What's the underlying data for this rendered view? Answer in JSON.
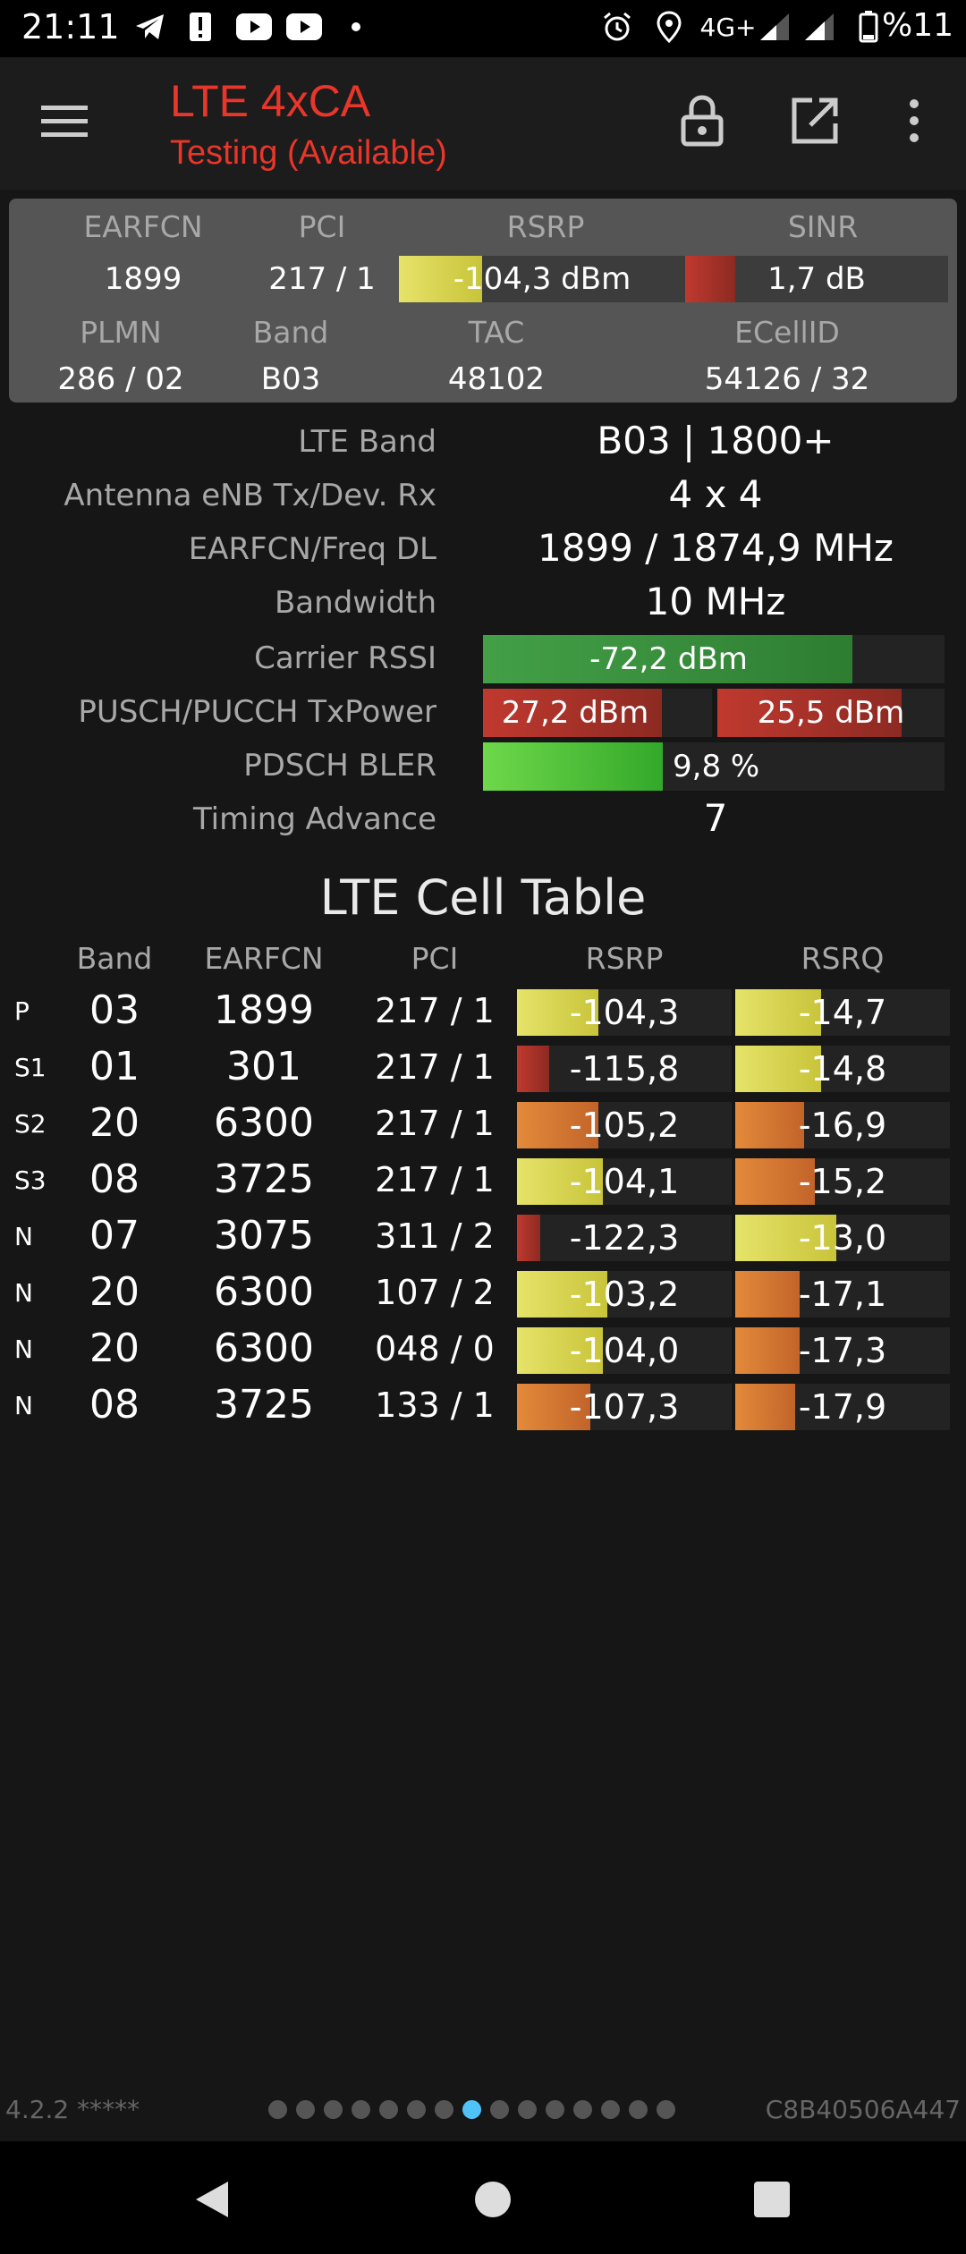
{
  "status": {
    "time": "21:11",
    "network": "4G+",
    "battery": "%11"
  },
  "toolbar": {
    "title": "LTE 4xCA",
    "subtitle": "Testing (Available)"
  },
  "summary": {
    "labels": {
      "earfcn": "EARFCN",
      "pci": "PCI",
      "rsrp": "RSRP",
      "sinr": "SINR",
      "plmn": "PLMN",
      "band": "Band",
      "tac": "TAC",
      "ecellid": "ECellID"
    },
    "earfcn": "1899",
    "pci": "217 / 1",
    "rsrp": "-104,3 dBm",
    "rsrp_level": 0.29,
    "sinr": "1,7 dB",
    "sinr_level": 0.19,
    "plmn": "286 / 02",
    "band": "B03",
    "tac": "48102",
    "ecellid": "54126 / 32"
  },
  "details": {
    "lte_band": {
      "label": "LTE Band",
      "value": "B03 | 1800+"
    },
    "antenna": {
      "label": "Antenna eNB Tx/Dev. Rx",
      "value": "4 x 4"
    },
    "earfcn_freq": {
      "label": "EARFCN/Freq DL",
      "value": "1899 / 1874,9 MHz"
    },
    "bandwidth": {
      "label": "Bandwidth",
      "value": "10 MHz"
    },
    "carrier_rssi": {
      "label": "Carrier RSSI",
      "value": "-72,2 dBm",
      "level": 0.8
    },
    "txpower": {
      "label": "PUSCH/PUCCH TxPower",
      "pusch": "27,2 dBm",
      "pusch_level": 0.78,
      "pucch": "25,5 dBm",
      "pucch_level": 0.81
    },
    "bler": {
      "label": "PDSCH BLER",
      "value": "9,8 %",
      "level": 0.39
    },
    "timing_advance": {
      "label": "Timing Advance",
      "value": "7"
    }
  },
  "cell_table": {
    "title": "LTE Cell Table",
    "headers": {
      "band": "Band",
      "earfcn": "EARFCN",
      "pci": "PCI",
      "rsrp": "RSRP",
      "rsrq": "RSRQ"
    },
    "rows": [
      {
        "tag": "P",
        "band": "03",
        "earfcn": "1899",
        "pci": "217 / 1",
        "rsrp": "-104,3",
        "rsrp_level": 0.38,
        "rsrp_color": "yellow",
        "rsrq": "-14,7",
        "rsrq_level": 0.4,
        "rsrq_color": "yellow"
      },
      {
        "tag": "S1",
        "band": "01",
        "earfcn": "301",
        "pci": "217 / 1",
        "rsrp": "-115,8",
        "rsrp_level": 0.15,
        "rsrp_color": "red",
        "rsrq": "-14,8",
        "rsrq_level": 0.4,
        "rsrq_color": "yellow"
      },
      {
        "tag": "S2",
        "band": "20",
        "earfcn": "6300",
        "pci": "217 / 1",
        "rsrp": "-105,2",
        "rsrp_level": 0.38,
        "rsrp_color": "orange",
        "rsrq": "-16,9",
        "rsrq_level": 0.32,
        "rsrq_color": "orange"
      },
      {
        "tag": "S3",
        "band": "08",
        "earfcn": "3725",
        "pci": "217 / 1",
        "rsrp": "-104,1",
        "rsrp_level": 0.4,
        "rsrp_color": "yellow",
        "rsrq": "-15,2",
        "rsrq_level": 0.37,
        "rsrq_color": "orange"
      },
      {
        "tag": "N",
        "band": "07",
        "earfcn": "3075",
        "pci": "311 / 2",
        "rsrp": "-122,3",
        "rsrp_level": 0.11,
        "rsrp_color": "red",
        "rsrq": "-13,0",
        "rsrq_level": 0.47,
        "rsrq_color": "yellow"
      },
      {
        "tag": "N",
        "band": "20",
        "earfcn": "6300",
        "pci": "107 / 2",
        "rsrp": "-103,2",
        "rsrp_level": 0.42,
        "rsrp_color": "yellow",
        "rsrq": "-17,1",
        "rsrq_level": 0.3,
        "rsrq_color": "orange"
      },
      {
        "tag": "N",
        "band": "20",
        "earfcn": "6300",
        "pci": "048 / 0",
        "rsrp": "-104,0",
        "rsrp_level": 0.4,
        "rsrp_color": "yellow",
        "rsrq": "-17,3",
        "rsrq_level": 0.3,
        "rsrq_color": "orange"
      },
      {
        "tag": "N",
        "band": "08",
        "earfcn": "3725",
        "pci": "133 / 1",
        "rsrp": "-107,3",
        "rsrp_level": 0.34,
        "rsrp_color": "orange",
        "rsrq": "-17,9",
        "rsrq_level": 0.28,
        "rsrq_color": "orange"
      }
    ]
  },
  "footer": {
    "version": "4.2.2 *****",
    "device_id": "C8B40506A447",
    "page_count": 15,
    "active_page": 8
  },
  "colors": {
    "accent": "#e8362a",
    "yellow": "#e6e36a",
    "red": "#c0392f",
    "orange": "#e38a3a",
    "green": "#43a047",
    "lightgreen": "#6ed84a"
  }
}
